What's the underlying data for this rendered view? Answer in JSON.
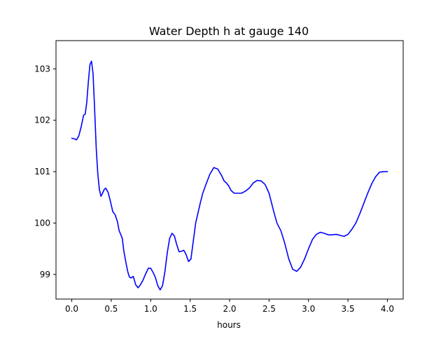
{
  "chart_data": {
    "type": "line",
    "title": "Water Depth h at gauge 140",
    "xlabel": "hours",
    "ylabel": "",
    "xlim": [
      -0.2,
      4.2
    ],
    "ylim": [
      98.52,
      103.55
    ],
    "xticks": [
      0.0,
      0.5,
      1.0,
      1.5,
      2.0,
      2.5,
      3.0,
      3.5,
      4.0
    ],
    "xtick_labels": [
      "0.0",
      "0.5",
      "1.0",
      "1.5",
      "2.0",
      "2.5",
      "3.0",
      "3.5",
      "4.0"
    ],
    "yticks": [
      99,
      100,
      101,
      102,
      103
    ],
    "ytick_labels": [
      "99",
      "100",
      "101",
      "102",
      "103"
    ],
    "grid": false,
    "series": [
      {
        "color": "#0000ff",
        "x": [
          0.0,
          0.03,
          0.06,
          0.09,
          0.12,
          0.15,
          0.17,
          0.19,
          0.21,
          0.23,
          0.25,
          0.27,
          0.29,
          0.31,
          0.33,
          0.35,
          0.37,
          0.39,
          0.41,
          0.43,
          0.46,
          0.49,
          0.52,
          0.55,
          0.58,
          0.6,
          0.62,
          0.64,
          0.66,
          0.69,
          0.71,
          0.73,
          0.75,
          0.78,
          0.81,
          0.84,
          0.87,
          0.9,
          0.93,
          0.97,
          1.0,
          1.03,
          1.06,
          1.09,
          1.12,
          1.15,
          1.18,
          1.21,
          1.24,
          1.27,
          1.3,
          1.33,
          1.36,
          1.39,
          1.42,
          1.45,
          1.48,
          1.51,
          1.54,
          1.57,
          1.6,
          1.63,
          1.66,
          1.7,
          1.75,
          1.8,
          1.85,
          1.9,
          1.93,
          1.96,
          1.99,
          2.02,
          2.06,
          2.1,
          2.15,
          2.2,
          2.25,
          2.3,
          2.35,
          2.4,
          2.45,
          2.5,
          2.53,
          2.56,
          2.6,
          2.65,
          2.7,
          2.75,
          2.8,
          2.85,
          2.9,
          2.95,
          3.0,
          3.05,
          3.1,
          3.15,
          3.2,
          3.25,
          3.3,
          3.35,
          3.4,
          3.45,
          3.5,
          3.55,
          3.6,
          3.65,
          3.7,
          3.75,
          3.8,
          3.85,
          3.9,
          3.95,
          4.0
        ],
        "y": [
          101.65,
          101.64,
          101.62,
          101.7,
          101.88,
          102.1,
          102.12,
          102.35,
          102.75,
          103.08,
          103.15,
          102.9,
          102.2,
          101.45,
          100.95,
          100.65,
          100.52,
          100.58,
          100.65,
          100.68,
          100.6,
          100.42,
          100.22,
          100.16,
          100.02,
          99.85,
          99.78,
          99.7,
          99.45,
          99.2,
          99.05,
          98.95,
          98.93,
          98.96,
          98.8,
          98.74,
          98.8,
          98.88,
          98.99,
          99.12,
          99.12,
          99.04,
          98.94,
          98.78,
          98.7,
          98.78,
          99.05,
          99.42,
          99.7,
          99.8,
          99.75,
          99.58,
          99.44,
          99.45,
          99.47,
          99.38,
          99.25,
          99.3,
          99.65,
          100.0,
          100.2,
          100.4,
          100.58,
          100.75,
          100.95,
          101.08,
          101.05,
          100.92,
          100.82,
          100.78,
          100.72,
          100.63,
          100.58,
          100.58,
          100.58,
          100.62,
          100.68,
          100.78,
          100.83,
          100.82,
          100.75,
          100.58,
          100.4,
          100.22,
          100.0,
          99.85,
          99.6,
          99.3,
          99.1,
          99.06,
          99.14,
          99.3,
          99.5,
          99.68,
          99.78,
          99.82,
          99.8,
          99.77,
          99.77,
          99.78,
          99.76,
          99.74,
          99.78,
          99.88,
          100.0,
          100.18,
          100.38,
          100.58,
          100.76,
          100.9,
          100.99,
          101.0,
          101.0
        ]
      }
    ]
  }
}
